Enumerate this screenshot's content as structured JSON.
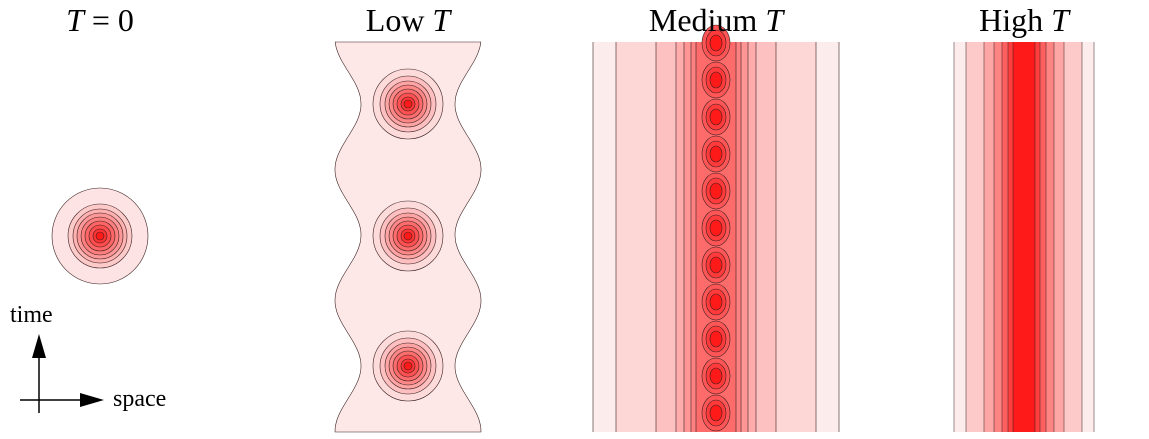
{
  "panels": [
    {
      "title_pre": "",
      "title_var": "T",
      "title_post": " = 0",
      "regime": "zero"
    },
    {
      "title_pre": "Low ",
      "title_var": "T",
      "title_post": "",
      "regime": "low"
    },
    {
      "title_pre": "Medium ",
      "title_var": "T",
      "title_post": "",
      "regime": "medium"
    },
    {
      "title_pre": "High ",
      "title_var": "T",
      "title_post": "",
      "regime": "high"
    }
  ],
  "axes": {
    "time_label": "time",
    "space_label": "space"
  },
  "colors": {
    "peak": "#ff1a1a",
    "base": "#fdf0f0",
    "contour_line": "#3a2020",
    "axis": "#000000"
  }
}
